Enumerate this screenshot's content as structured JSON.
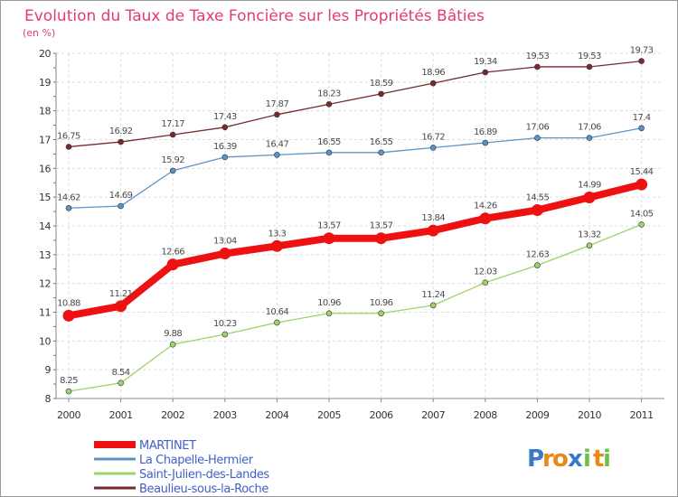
{
  "chart_data": {
    "type": "line",
    "title": "Evolution du Taux de Taxe Foncière sur les Propriétés Bâties",
    "ylabel": "(en %)",
    "xlabel": "",
    "ylim": [
      8,
      20
    ],
    "yticks": [
      "8",
      "9",
      "10",
      "11",
      "12",
      "13",
      "14",
      "15",
      "16",
      "17",
      "18",
      "19",
      "20"
    ],
    "categories": [
      "2000",
      "2001",
      "2002",
      "2003",
      "2004",
      "2005",
      "2006",
      "2007",
      "2008",
      "2009",
      "2010",
      "2011"
    ],
    "grid": true,
    "legend_position": "bottom-left",
    "series": [
      {
        "name": "Beaulieu-sous-la-Roche",
        "color": "#7a2a2e",
        "values": [
          16.75,
          16.92,
          17.17,
          17.43,
          17.87,
          18.23,
          18.59,
          18.96,
          19.34,
          19.53,
          19.53,
          19.73
        ],
        "labels": [
          "16.75",
          "16.92",
          "17.17",
          "17.43",
          "17.87",
          "18.23",
          "18.59",
          "18.96",
          "19.34",
          "19.53",
          "19.53",
          "19.73"
        ]
      },
      {
        "name": "La Chapelle-Hermier",
        "color": "#5b93c9",
        "values": [
          14.62,
          14.69,
          15.92,
          16.39,
          16.47,
          16.55,
          16.55,
          16.72,
          16.89,
          17.06,
          17.06,
          17.4
        ],
        "labels": [
          "14.62",
          "14.69",
          "15.92",
          "16.39",
          "16.47",
          "16.55",
          "16.55",
          "16.72",
          "16.89",
          "17.06",
          "17.06",
          "17.4"
        ]
      },
      {
        "name": "Saint-Julien-des-Landes",
        "color": "#9dd36a",
        "values": [
          8.25,
          8.54,
          9.88,
          10.23,
          10.64,
          10.96,
          10.96,
          11.24,
          12.03,
          12.63,
          13.32,
          14.05
        ],
        "labels": [
          "8.25",
          "8.54",
          "9.88",
          "10.23",
          "10.64",
          "10.96",
          "10.96",
          "11.24",
          "12.03",
          "12.63",
          "13.32",
          "14.05"
        ]
      },
      {
        "name": "MARTINET",
        "color": "#ee1111",
        "bold": true,
        "values": [
          10.88,
          11.21,
          12.66,
          13.04,
          13.3,
          13.57,
          13.57,
          13.84,
          14.26,
          14.55,
          14.99,
          15.44
        ],
        "labels": [
          "10.88",
          "11.21",
          "12.66",
          "13.04",
          "13.3",
          "13.57",
          "13.57",
          "13.84",
          "14.26",
          "14.55",
          "14.99",
          "15.44"
        ]
      }
    ],
    "legend_order": [
      "MARTINET",
      "La Chapelle-Hermier",
      "Saint-Julien-des-Landes",
      "Beaulieu-sous-la-Roche"
    ]
  },
  "brand": {
    "letters": [
      "P",
      "r",
      "o",
      "x",
      "i",
      "t",
      "i"
    ],
    "colors": [
      "#3a78c8",
      "#e88a1a",
      "#e88a1a",
      "#3a78c8",
      "#6cc04a",
      "#e88a1a",
      "#6cc04a"
    ]
  }
}
